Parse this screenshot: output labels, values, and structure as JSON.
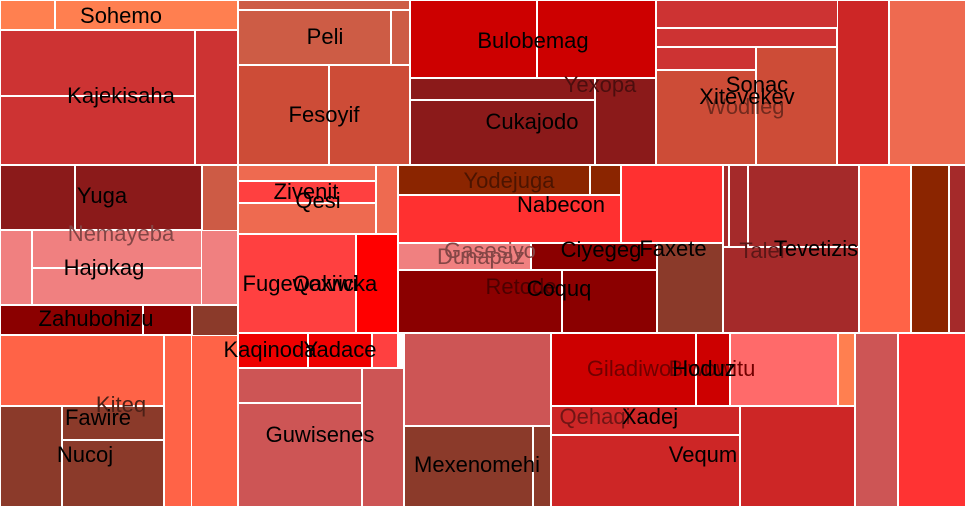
{
  "chart_data": {
    "type": "treemap",
    "groups": [
      {
        "color": "#cc3333",
        "cells": [
          {
            "color": "#ff8050",
            "label": ""
          },
          {
            "color": "#ff7f50",
            "label": "Sohemo"
          },
          {
            "color": "#cd3333",
            "label": "Kajekisaha"
          },
          {
            "color": "#cd3333",
            "label": ""
          },
          {
            "color": "#cd3333",
            "label": ""
          }
        ]
      },
      {
        "color": "#8b1a1a",
        "cells": [
          {
            "color": "#8b1a1a",
            "label": ""
          },
          {
            "color": "#8b1a1a",
            "label": "Yuga"
          },
          {
            "color": "#cd5b45",
            "label": ""
          }
        ]
      },
      {
        "color": "#f08080",
        "cells": [
          {
            "color": "#f08080",
            "label": ""
          },
          {
            "color": "#f08080",
            "label": "Nemayeba"
          },
          {
            "color": "#f08080",
            "label": "Hajokag"
          }
        ]
      },
      {
        "color": "#8b0000",
        "cells": [
          {
            "color": "#8b0000",
            "label": "Zahubohizu"
          },
          {
            "color": "#8b0000",
            "label": ""
          },
          {
            "color": "#8b3a2a",
            "label": ""
          }
        ]
      },
      {
        "color": "#ff6347",
        "cells": [
          {
            "color": "#ff6347",
            "label": ""
          },
          {
            "color": "#ff6347",
            "label": ""
          },
          {
            "color": "#8b3a2a",
            "label": "Kiteq"
          },
          {
            "color": "#8b3a2a",
            "label": "Fawire"
          },
          {
            "color": "#8b3a2a",
            "label": "Nucoj"
          }
        ]
      },
      {
        "color": "#cd5c45",
        "cells": [
          {
            "color": "#cd5c45",
            "label": ""
          },
          {
            "color": "#cd5c45",
            "label": "Peli"
          },
          {
            "color": "#cd5c45",
            "label": ""
          },
          {
            "color": "#cd4c37",
            "label": "Fesoyif"
          },
          {
            "color": "#cd4c37",
            "label": ""
          }
        ]
      },
      {
        "color": "#cd0000",
        "cells": [
          {
            "color": "#cd0000",
            "label": "Bulobemag"
          },
          {
            "color": "#cd0000",
            "label": ""
          },
          {
            "color": "#8b1a1a",
            "label": "Yexopa"
          },
          {
            "color": "#8b1a1a",
            "label": "Cukajodo"
          },
          {
            "color": "#8b1a1a",
            "label": ""
          }
        ]
      },
      {
        "color": "#cd3333",
        "cells": [
          {
            "color": "#cd3333",
            "label": ""
          },
          {
            "color": "#cd3333",
            "label": ""
          },
          {
            "color": "#cd3333",
            "label": ""
          },
          {
            "color": "#cd4c37",
            "label": "Wodileg"
          },
          {
            "color": "#cd4c37",
            "label": "Sonac"
          },
          {
            "color": "#cd4c37",
            "label": "Xitevekev"
          },
          {
            "color": "#cd2626",
            "label": ""
          },
          {
            "color": "#ee6a50",
            "label": ""
          }
        ]
      },
      {
        "color": "#ff4040",
        "cells": [
          {
            "color": "#ee6a50",
            "label": ""
          },
          {
            "color": "#ff4040",
            "label": "Zivenit"
          },
          {
            "color": "#ee6a50",
            "label": "Qesi"
          },
          {
            "color": "#ee6a50",
            "label": ""
          },
          {
            "color": "#ff4040",
            "label": "Fugewoxiwi"
          },
          {
            "color": "#ff4040",
            "label": "Qalvicka"
          },
          {
            "color": "#ff0000",
            "label": ""
          },
          {
            "color": "#ee0000",
            "label": "Kaqinoda"
          },
          {
            "color": "#ee0000",
            "label": "Yadace"
          },
          {
            "color": "#ff4040",
            "label": ""
          }
        ]
      },
      {
        "color": "#cd5555",
        "cells": [
          {
            "color": "#cd5555",
            "label": ""
          },
          {
            "color": "#cd5555",
            "label": "Guwisenes"
          },
          {
            "color": "#cd5555",
            "label": ""
          },
          {
            "color": "#cd5555",
            "label": ""
          },
          {
            "color": "#8b3a2a",
            "label": "Mexenomehi"
          },
          {
            "color": "#8b3a2a",
            "label": ""
          }
        ]
      },
      {
        "color": "#8b2500",
        "cells": [
          {
            "color": "#8b2500",
            "label": "Yodejuga"
          },
          {
            "color": "#8b2500",
            "label": ""
          },
          {
            "color": "#ff3030",
            "label": "Nabecon"
          },
          {
            "color": "#ff3030",
            "label": ""
          },
          {
            "color": "#f08080",
            "label": "Gasesiyo"
          },
          {
            "color": "#f08080",
            "label": "Dunapaz"
          },
          {
            "color": "#8b0000",
            "label": "Retode"
          },
          {
            "color": "#8b0000",
            "label": "Coquq"
          },
          {
            "color": "#8b0000",
            "label": "Ciyegeg"
          },
          {
            "color": "#8b3a2a",
            "label": "Faxete"
          }
        ]
      },
      {
        "color": "#a52a2a",
        "cells": [
          {
            "color": "#a52a2a",
            "label": ""
          },
          {
            "color": "#a52a2a",
            "label": ""
          },
          {
            "color": "#a52a2a",
            "label": "Talei"
          },
          {
            "color": "#a52a2a",
            "label": "Tevetizis"
          },
          {
            "color": "#ff6347",
            "label": ""
          },
          {
            "color": "#8b2500",
            "label": ""
          },
          {
            "color": "#a52a2a",
            "label": ""
          }
        ]
      },
      {
        "color": "#cd0000",
        "cells": [
          {
            "color": "#cd0000",
            "label": "Giladiwo"
          },
          {
            "color": "#cd0000",
            "label": "Biwowitu"
          },
          {
            "color": "#cd0000",
            "label": "Hoduz"
          },
          {
            "color": "#ff6a6a",
            "label": ""
          },
          {
            "color": "#ff7f50",
            "label": ""
          },
          {
            "color": "#cd2626",
            "label": "Qehaqi"
          },
          {
            "color": "#cd2626",
            "label": "Xadej"
          },
          {
            "color": "#cd2626",
            "label": "Vequm"
          },
          {
            "color": "#cd2626",
            "label": ""
          },
          {
            "color": "#cd5555",
            "label": ""
          },
          {
            "color": "#ff3333",
            "label": ""
          }
        ]
      }
    ]
  }
}
